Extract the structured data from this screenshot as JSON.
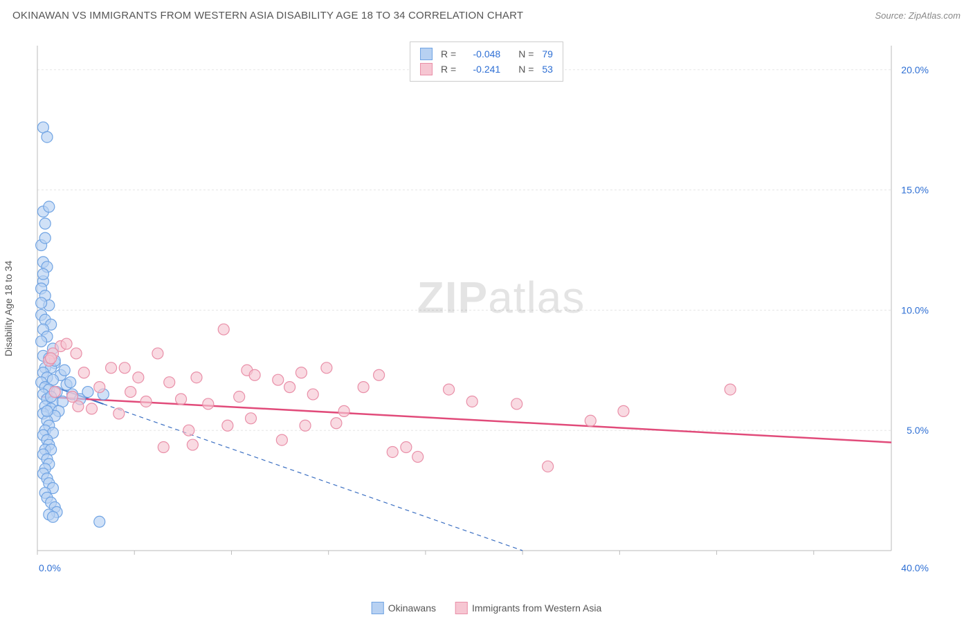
{
  "header": {
    "title": "OKINAWAN VS IMMIGRANTS FROM WESTERN ASIA DISABILITY AGE 18 TO 34 CORRELATION CHART",
    "source_prefix": "Source: ",
    "source_name": "ZipAtlas.com"
  },
  "watermark": {
    "part1": "ZIP",
    "part2": "atlas"
  },
  "chart": {
    "type": "scatter",
    "ylabel": "Disability Age 18 to 34",
    "xlim": [
      0,
      44
    ],
    "ylim": [
      0,
      21
    ],
    "x_ticks": [
      0,
      5,
      10,
      15,
      20,
      25,
      30,
      35,
      40
    ],
    "x_tick_labels": [
      "0.0%",
      "",
      "",
      "",
      "",
      "",
      "",
      "",
      "40.0%"
    ],
    "y_ticks": [
      5,
      10,
      15,
      20
    ],
    "y_tick_labels": [
      "5.0%",
      "10.0%",
      "15.0%",
      "20.0%"
    ],
    "grid_color": "#e5e5e5",
    "axis_color": "#bbbbbb",
    "tick_label_color": "#2e6fd4",
    "background_color": "#ffffff",
    "series": [
      {
        "name": "Okinawans",
        "color_fill": "#b7d1f2",
        "color_stroke": "#6fa3e3",
        "r_value": "-0.048",
        "n_value": "79",
        "marker_radius": 8,
        "marker_opacity": 0.65,
        "regression": {
          "x1": 0.2,
          "y1": 7.0,
          "x2": 25,
          "y2": 0.0,
          "solid_until_x": 3.4,
          "color": "#3b6fc2",
          "width": 2
        },
        "points": [
          [
            0.3,
            17.6
          ],
          [
            0.5,
            17.2
          ],
          [
            0.3,
            14.1
          ],
          [
            0.6,
            14.3
          ],
          [
            0.4,
            13.6
          ],
          [
            0.2,
            12.7
          ],
          [
            0.3,
            12.0
          ],
          [
            0.5,
            11.8
          ],
          [
            0.3,
            11.2
          ],
          [
            0.2,
            10.9
          ],
          [
            0.4,
            10.6
          ],
          [
            0.6,
            10.2
          ],
          [
            0.2,
            9.8
          ],
          [
            0.4,
            9.6
          ],
          [
            0.7,
            9.4
          ],
          [
            0.3,
            9.2
          ],
          [
            0.5,
            8.9
          ],
          [
            0.2,
            8.7
          ],
          [
            0.8,
            8.4
          ],
          [
            0.3,
            8.1
          ],
          [
            0.6,
            8.0
          ],
          [
            0.9,
            7.8
          ],
          [
            0.4,
            7.6
          ],
          [
            0.7,
            7.6
          ],
          [
            0.3,
            7.4
          ],
          [
            1.2,
            7.3
          ],
          [
            0.5,
            7.2
          ],
          [
            0.8,
            7.1
          ],
          [
            0.2,
            7.0
          ],
          [
            1.5,
            6.9
          ],
          [
            0.4,
            6.8
          ],
          [
            0.6,
            6.7
          ],
          [
            1.0,
            6.6
          ],
          [
            0.3,
            6.5
          ],
          [
            1.8,
            6.5
          ],
          [
            0.5,
            6.3
          ],
          [
            0.8,
            6.2
          ],
          [
            1.3,
            6.2
          ],
          [
            2.2,
            6.3
          ],
          [
            0.4,
            6.0
          ],
          [
            0.7,
            5.9
          ],
          [
            1.1,
            5.8
          ],
          [
            0.3,
            5.7
          ],
          [
            0.9,
            5.6
          ],
          [
            0.5,
            5.4
          ],
          [
            0.6,
            5.2
          ],
          [
            0.4,
            5.0
          ],
          [
            0.8,
            4.9
          ],
          [
            0.3,
            4.8
          ],
          [
            0.5,
            4.6
          ],
          [
            0.6,
            4.4
          ],
          [
            0.4,
            4.2
          ],
          [
            0.7,
            4.2
          ],
          [
            0.3,
            4.0
          ],
          [
            0.5,
            3.8
          ],
          [
            0.6,
            3.6
          ],
          [
            0.4,
            3.4
          ],
          [
            0.3,
            3.2
          ],
          [
            0.5,
            3.0
          ],
          [
            0.6,
            2.8
          ],
          [
            0.8,
            2.6
          ],
          [
            0.4,
            2.4
          ],
          [
            0.5,
            2.2
          ],
          [
            0.7,
            2.0
          ],
          [
            0.9,
            1.8
          ],
          [
            1.0,
            1.6
          ],
          [
            0.6,
            1.5
          ],
          [
            0.8,
            1.4
          ],
          [
            3.2,
            1.2
          ],
          [
            0.9,
            7.9
          ],
          [
            1.4,
            7.5
          ],
          [
            1.7,
            7.0
          ],
          [
            2.6,
            6.6
          ],
          [
            3.4,
            6.5
          ],
          [
            0.4,
            13.0
          ],
          [
            0.2,
            10.3
          ],
          [
            0.3,
            11.5
          ],
          [
            0.5,
            5.8
          ],
          [
            0.7,
            6.4
          ]
        ]
      },
      {
        "name": "Immigrants from Western Asia",
        "color_fill": "#f6c6d2",
        "color_stroke": "#e98fa8",
        "r_value": "-0.241",
        "n_value": "53",
        "marker_radius": 8,
        "marker_opacity": 0.65,
        "regression": {
          "x1": 0.2,
          "y1": 6.4,
          "x2": 44,
          "y2": 4.5,
          "solid_until_x": 44,
          "color": "#e14b7a",
          "width": 2.5
        },
        "points": [
          [
            1.2,
            8.5
          ],
          [
            0.8,
            8.2
          ],
          [
            2.0,
            8.2
          ],
          [
            1.5,
            8.6
          ],
          [
            0.6,
            7.9
          ],
          [
            3.8,
            7.6
          ],
          [
            2.4,
            7.4
          ],
          [
            5.2,
            7.2
          ],
          [
            4.5,
            7.6
          ],
          [
            6.8,
            7.0
          ],
          [
            8.2,
            7.2
          ],
          [
            6.2,
            8.2
          ],
          [
            9.6,
            9.2
          ],
          [
            10.8,
            7.5
          ],
          [
            12.4,
            7.1
          ],
          [
            7.4,
            6.3
          ],
          [
            8.8,
            6.1
          ],
          [
            11.2,
            7.3
          ],
          [
            13.6,
            7.4
          ],
          [
            14.9,
            7.6
          ],
          [
            17.6,
            7.3
          ],
          [
            13.0,
            6.8
          ],
          [
            14.2,
            6.5
          ],
          [
            15.4,
            5.3
          ],
          [
            11.0,
            5.5
          ],
          [
            9.8,
            5.2
          ],
          [
            8.0,
            4.4
          ],
          [
            12.6,
            4.6
          ],
          [
            16.8,
            6.8
          ],
          [
            18.3,
            4.1
          ],
          [
            19.6,
            3.9
          ],
          [
            22.4,
            6.2
          ],
          [
            24.7,
            6.1
          ],
          [
            21.2,
            6.7
          ],
          [
            26.3,
            3.5
          ],
          [
            28.5,
            5.4
          ],
          [
            30.2,
            5.8
          ],
          [
            35.7,
            6.7
          ],
          [
            2.8,
            5.9
          ],
          [
            4.2,
            5.7
          ],
          [
            5.6,
            6.2
          ],
          [
            3.2,
            6.8
          ],
          [
            1.8,
            6.4
          ],
          [
            0.9,
            6.6
          ],
          [
            2.1,
            6.0
          ],
          [
            6.5,
            4.3
          ],
          [
            7.8,
            5.0
          ],
          [
            15.8,
            5.8
          ],
          [
            10.4,
            6.4
          ],
          [
            0.7,
            8.0
          ],
          [
            4.8,
            6.6
          ],
          [
            13.8,
            5.2
          ],
          [
            19.0,
            4.3
          ]
        ]
      }
    ]
  },
  "legend_labels": {
    "R": "R =",
    "N": "N ="
  }
}
